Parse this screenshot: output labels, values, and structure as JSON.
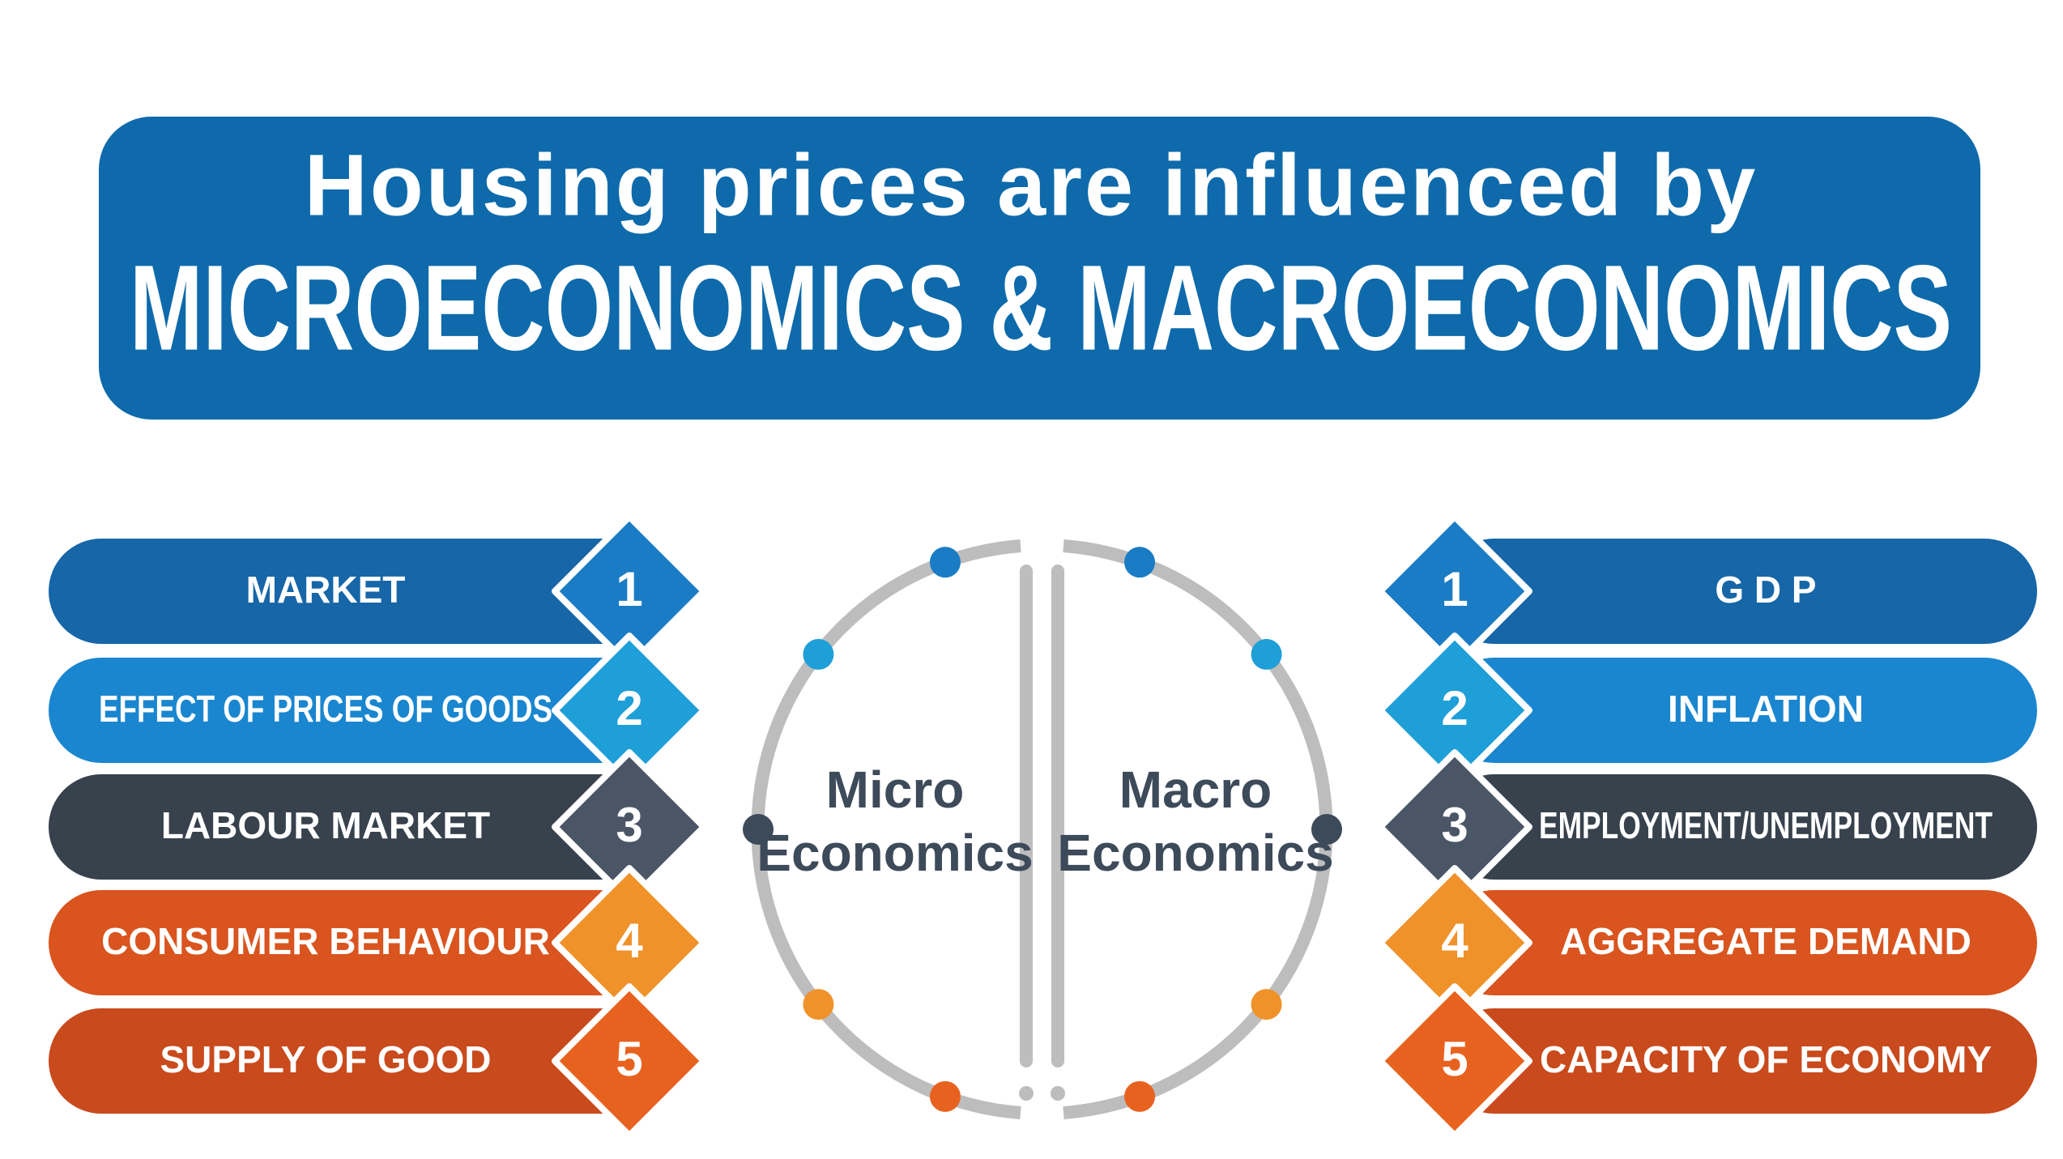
{
  "header": {
    "line1": "Housing prices are influenced by",
    "line2": "MICROECONOMICS & MACROECONOMICS"
  },
  "center": {
    "micro": [
      "Micro",
      "Economics"
    ],
    "macro": [
      "Macro",
      "Economics"
    ]
  },
  "micro_items": [
    {
      "number": "1",
      "label": "MARKET"
    },
    {
      "number": "2",
      "label": "EFFECT OF PRICES OF GOODS"
    },
    {
      "number": "3",
      "label": "LABOUR MARKET"
    },
    {
      "number": "4",
      "label": "CONSUMER BEHAVIOUR"
    },
    {
      "number": "5",
      "label": "SUPPLY OF GOOD"
    }
  ],
  "macro_items": [
    {
      "number": "1",
      "label": "G D P"
    },
    {
      "number": "2",
      "label": "INFLATION"
    },
    {
      "number": "3",
      "label": "EMPLOYMENT/UNEMPLOYMENT"
    },
    {
      "number": "4",
      "label": "AGGREGATE DEMAND"
    },
    {
      "number": "5",
      "label": "CAPACITY OF ECONOMY"
    }
  ]
}
